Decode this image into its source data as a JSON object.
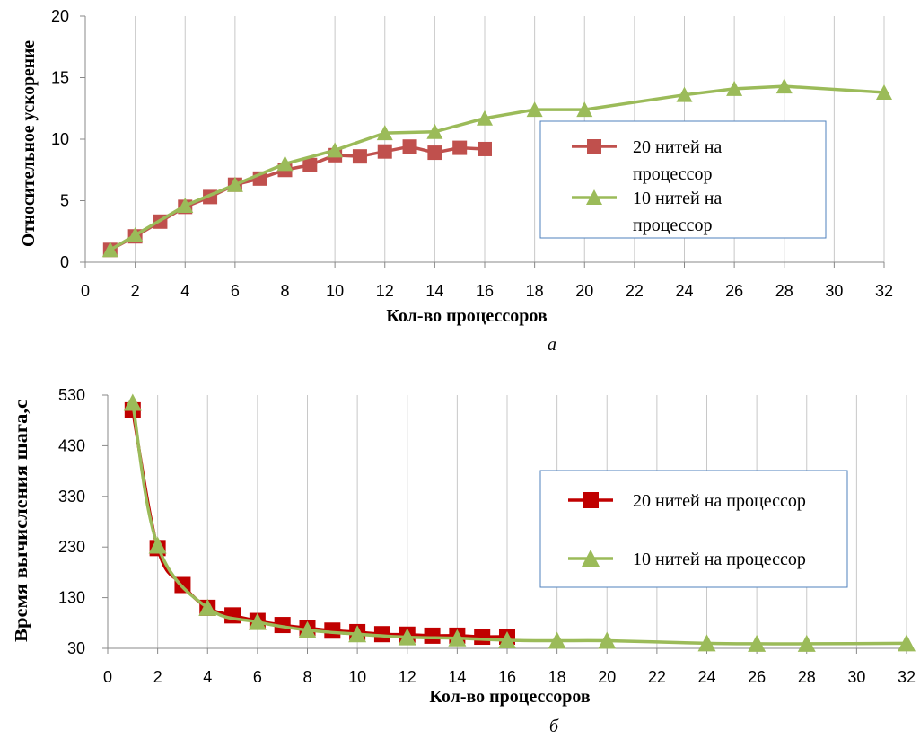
{
  "chart_data": [
    {
      "type": "line",
      "caption": "а",
      "xlabel": "Кол-во процессоров",
      "ylabel": "Относительное ускорение",
      "xlim": [
        0,
        32
      ],
      "ylim": [
        0,
        20
      ],
      "x_ticks": [
        0,
        2,
        4,
        6,
        8,
        10,
        12,
        14,
        16,
        18,
        20,
        22,
        24,
        26,
        28,
        30,
        32
      ],
      "y_ticks": [
        0,
        5,
        10,
        15,
        20
      ],
      "grid": "vertical",
      "legend_position": "right",
      "legend": [
        "20 нитей на процессор",
        "10 нитей на процессор"
      ],
      "series": [
        {
          "name": "20 нитей на процессор",
          "color": "#c0504d",
          "marker": "square",
          "x": [
            1,
            2,
            3,
            4,
            5,
            6,
            7,
            8,
            9,
            10,
            11,
            12,
            13,
            14,
            15,
            16
          ],
          "y": [
            1.0,
            2.1,
            3.3,
            4.5,
            5.3,
            6.3,
            6.8,
            7.5,
            7.9,
            8.7,
            8.6,
            9.0,
            9.4,
            8.9,
            9.3,
            9.2
          ]
        },
        {
          "name": "10 нитей на процессор",
          "color": "#9bbb59",
          "marker": "triangle",
          "x": [
            1,
            2,
            4,
            6,
            8,
            10,
            12,
            14,
            16,
            18,
            20,
            24,
            26,
            28,
            32
          ],
          "y": [
            1.0,
            2.2,
            4.6,
            6.3,
            8.0,
            9.1,
            10.5,
            10.6,
            11.7,
            12.4,
            12.4,
            13.6,
            14.1,
            14.3,
            13.8
          ]
        }
      ]
    },
    {
      "type": "line",
      "caption": "б",
      "xlabel": "Кол-во процессоров",
      "ylabel": "Время вычисления шага,с",
      "xlim": [
        0,
        32
      ],
      "ylim": [
        30,
        530
      ],
      "x_ticks": [
        0,
        2,
        4,
        6,
        8,
        10,
        12,
        14,
        16,
        18,
        20,
        22,
        24,
        26,
        28,
        30,
        32
      ],
      "y_ticks": [
        30,
        130,
        230,
        330,
        430,
        530
      ],
      "grid": "vertical",
      "legend_position": "right",
      "legend": [
        "20 нитей на процессор",
        "10 нитей на процессор"
      ],
      "series": [
        {
          "name": "20 нитей на процессор",
          "color": "#c00000",
          "marker": "square",
          "x": [
            1,
            2,
            3,
            4,
            5,
            6,
            7,
            8,
            9,
            10,
            11,
            12,
            13,
            14,
            15,
            16
          ],
          "y": [
            500,
            228,
            155,
            110,
            95,
            84,
            76,
            70,
            65,
            62,
            58,
            57,
            55,
            55,
            53,
            53
          ]
        },
        {
          "name": "10 нитей на процессор",
          "color": "#9bbb59",
          "marker": "triangle",
          "x": [
            1,
            2,
            4,
            6,
            8,
            10,
            12,
            14,
            16,
            18,
            20,
            24,
            26,
            28,
            32
          ],
          "y": [
            515,
            233,
            110,
            82,
            66,
            58,
            52,
            50,
            46,
            45,
            45,
            40,
            39,
            39,
            40
          ]
        }
      ]
    }
  ]
}
